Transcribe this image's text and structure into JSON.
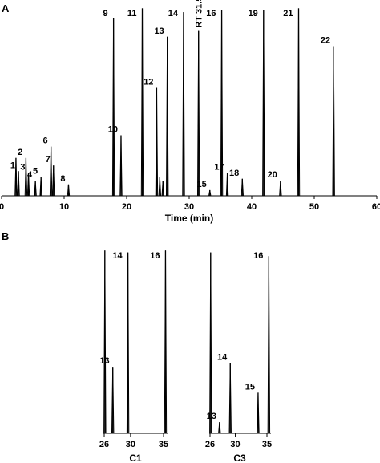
{
  "panels": {
    "a_label": "A",
    "b_label": "B"
  },
  "chart_data": [
    {
      "type": "line",
      "panel": "A",
      "xlabel": "Time (min)",
      "ylabel": "",
      "xlim": [
        0,
        60
      ],
      "xticks": [
        "0",
        "10",
        "20",
        "30",
        "40",
        "50",
        "60"
      ],
      "tick_values": [
        0,
        10,
        20,
        30,
        40,
        50,
        60
      ],
      "peaks": [
        {
          "label": "1",
          "rt": 2.7,
          "height": 0.13
        },
        {
          "label": "2",
          "rt": 3.9,
          "height": 0.2
        },
        {
          "label": "3",
          "rt": 4.3,
          "height": 0.12
        },
        {
          "label": "4",
          "rt": 5.4,
          "height": 0.08
        },
        {
          "label": "5",
          "rt": 6.3,
          "height": 0.1
        },
        {
          "label": "6",
          "rt": 7.9,
          "height": 0.26
        },
        {
          "label": "7",
          "rt": 8.3,
          "height": 0.16
        },
        {
          "label": "8",
          "rt": 10.7,
          "height": 0.06
        },
        {
          "label": "9",
          "rt": 17.9,
          "height": 0.94
        },
        {
          "label": "10",
          "rt": 19.1,
          "height": 0.32
        },
        {
          "label": "11",
          "rt": 22.5,
          "height": 0.99
        },
        {
          "label": "12",
          "rt": 24.8,
          "height": 0.57
        },
        {
          "label": "13",
          "rt": 26.5,
          "height": 0.84
        },
        {
          "label": "14",
          "rt": 29.1,
          "height": 0.97
        },
        {
          "label": "RT 31.5",
          "rt": 31.5,
          "height": 0.87
        },
        {
          "label": "15",
          "rt": 33.3,
          "height": 0.03
        },
        {
          "label": "16",
          "rt": 35.2,
          "height": 0.98
        },
        {
          "label": "17",
          "rt": 36.1,
          "height": 0.12
        },
        {
          "label": "18",
          "rt": 38.5,
          "height": 0.09
        },
        {
          "label": "19",
          "rt": 41.9,
          "height": 0.98
        },
        {
          "label": "20",
          "rt": 44.6,
          "height": 0.08
        },
        {
          "label": "21",
          "rt": 47.5,
          "height": 0.99
        },
        {
          "label": "22",
          "rt": 53.1,
          "height": 0.79
        }
      ],
      "unlabeled_peaks": [
        {
          "rt": 2.3,
          "height": 0.2
        },
        {
          "rt": 25.3,
          "height": 0.1
        },
        {
          "rt": 25.8,
          "height": 0.08
        }
      ]
    },
    {
      "type": "line",
      "panel": "B",
      "name": "C1",
      "xlabel": "C1",
      "xlim": [
        26,
        35
      ],
      "xticks": [
        "26",
        "30",
        "35"
      ],
      "tick_values": [
        26,
        30,
        35
      ],
      "peaks": [
        {
          "label": "13",
          "rt": 27.3,
          "height": 0.36
        },
        {
          "label": "14",
          "rt": 29.6,
          "height": 0.98
        },
        {
          "label": "16",
          "rt": 35.3,
          "height": 0.99
        }
      ],
      "unlabeled_peaks": [
        {
          "rt": 26.1,
          "height": 0.99
        }
      ]
    },
    {
      "type": "line",
      "panel": "B",
      "name": "C3",
      "xlabel": "C3",
      "xlim": [
        26,
        35
      ],
      "xticks": [
        "26",
        "30",
        "35"
      ],
      "tick_values": [
        26,
        30,
        35
      ],
      "peaks": [
        {
          "label": "13",
          "rt": 27.5,
          "height": 0.06
        },
        {
          "label": "14",
          "rt": 29.2,
          "height": 0.38
        },
        {
          "label": "15",
          "rt": 33.6,
          "height": 0.22
        },
        {
          "label": "16",
          "rt": 35.3,
          "height": 0.96
        }
      ],
      "unlabeled_peaks": [
        {
          "rt": 26.1,
          "height": 0.98
        }
      ]
    }
  ]
}
